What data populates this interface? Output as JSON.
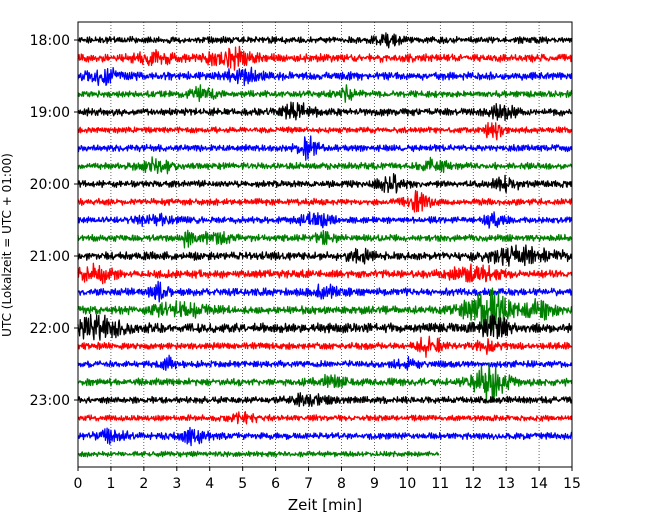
{
  "chart_data": {
    "type": "line",
    "title": "",
    "xlabel": "Zeit  [min]",
    "ylabel": "UTC (Lokalzeit = UTC + 01:00)",
    "xlim": [
      0,
      15
    ],
    "x_ticks": [
      "0",
      "1",
      "2",
      "3",
      "4",
      "5",
      "6",
      "7",
      "8",
      "9",
      "10",
      "11",
      "12",
      "13",
      "14",
      "15"
    ],
    "y_tick_labels": [
      "18:00",
      "19:00",
      "20:00",
      "21:00",
      "22:00",
      "23:00"
    ],
    "grid": "vertical dotted at each minute",
    "trace_interval_minutes": 15,
    "color_cycle": [
      "#000000",
      "#ff0000",
      "#0000ff",
      "#008000"
    ],
    "traces": [
      {
        "start": "18:00",
        "color": "#000000",
        "end_min": 15,
        "amplitude": 0.25,
        "events": [
          {
            "t": 9.4,
            "amp": 0.45,
            "w": 0.3
          }
        ]
      },
      {
        "start": "18:15",
        "color": "#ff0000",
        "end_min": 15,
        "amplitude": 0.3,
        "events": [
          {
            "t": 2.2,
            "amp": 0.55,
            "w": 0.5
          },
          {
            "t": 4.6,
            "amp": 0.75,
            "w": 0.6
          }
        ]
      },
      {
        "start": "18:30",
        "color": "#0000ff",
        "end_min": 15,
        "amplitude": 0.3,
        "events": [
          {
            "t": 0.8,
            "amp": 0.45,
            "w": 0.5
          },
          {
            "t": 5.0,
            "amp": 0.45,
            "w": 0.5
          }
        ]
      },
      {
        "start": "18:45",
        "color": "#008000",
        "end_min": 15,
        "amplitude": 0.25,
        "events": [
          {
            "t": 3.8,
            "amp": 0.5,
            "w": 0.35
          },
          {
            "t": 8.2,
            "amp": 0.4,
            "w": 0.4
          }
        ]
      },
      {
        "start": "19:00",
        "color": "#000000",
        "end_min": 15,
        "amplitude": 0.28,
        "events": [
          {
            "t": 6.6,
            "amp": 0.55,
            "w": 0.5
          },
          {
            "t": 12.9,
            "amp": 0.45,
            "w": 0.35
          }
        ]
      },
      {
        "start": "19:15",
        "color": "#ff0000",
        "end_min": 15,
        "amplitude": 0.22,
        "events": [
          {
            "t": 12.6,
            "amp": 0.6,
            "w": 0.35
          }
        ]
      },
      {
        "start": "19:30",
        "color": "#0000ff",
        "end_min": 15,
        "amplitude": 0.25,
        "events": [
          {
            "t": 7.0,
            "amp": 0.7,
            "w": 0.3
          }
        ]
      },
      {
        "start": "19:45",
        "color": "#008000",
        "end_min": 15,
        "amplitude": 0.25,
        "events": [
          {
            "t": 2.4,
            "amp": 0.5,
            "w": 0.5
          },
          {
            "t": 10.8,
            "amp": 0.45,
            "w": 0.4
          }
        ]
      },
      {
        "start": "20:00",
        "color": "#000000",
        "end_min": 15,
        "amplitude": 0.25,
        "events": [
          {
            "t": 9.5,
            "amp": 0.55,
            "w": 0.4
          },
          {
            "t": 13.0,
            "amp": 0.4,
            "w": 0.4
          }
        ]
      },
      {
        "start": "20:15",
        "color": "#ff0000",
        "end_min": 15,
        "amplitude": 0.25,
        "events": [
          {
            "t": 10.3,
            "amp": 0.65,
            "w": 0.35
          }
        ]
      },
      {
        "start": "20:30",
        "color": "#0000ff",
        "end_min": 15,
        "amplitude": 0.25,
        "events": [
          {
            "t": 2.3,
            "amp": 0.45,
            "w": 0.4
          },
          {
            "t": 7.2,
            "amp": 0.45,
            "w": 0.45
          },
          {
            "t": 12.6,
            "amp": 0.4,
            "w": 0.3
          }
        ]
      },
      {
        "start": "20:45",
        "color": "#008000",
        "end_min": 15,
        "amplitude": 0.25,
        "events": [
          {
            "t": 3.3,
            "amp": 0.6,
            "w": 0.15
          },
          {
            "t": 4.2,
            "amp": 0.4,
            "w": 0.5
          },
          {
            "t": 7.5,
            "amp": 0.45,
            "w": 0.3
          }
        ]
      },
      {
        "start": "21:00",
        "color": "#000000",
        "end_min": 15,
        "amplitude": 0.3,
        "events": [
          {
            "t": 8.5,
            "amp": 0.4,
            "w": 0.4
          },
          {
            "t": 13.5,
            "amp": 0.5,
            "w": 1.2
          }
        ]
      },
      {
        "start": "21:15",
        "color": "#ff0000",
        "end_min": 15,
        "amplitude": 0.3,
        "events": [
          {
            "t": 0.5,
            "amp": 0.55,
            "w": 0.5
          },
          {
            "t": 12.0,
            "amp": 0.5,
            "w": 0.7
          }
        ]
      },
      {
        "start": "21:30",
        "color": "#0000ff",
        "end_min": 15,
        "amplitude": 0.28,
        "events": [
          {
            "t": 2.5,
            "amp": 0.5,
            "w": 0.3
          },
          {
            "t": 7.5,
            "amp": 0.35,
            "w": 0.5
          }
        ]
      },
      {
        "start": "21:45",
        "color": "#008000",
        "end_min": 15,
        "amplitude": 0.3,
        "events": [
          {
            "t": 3.0,
            "amp": 0.45,
            "w": 0.8
          },
          {
            "t": 12.4,
            "amp": 1.6,
            "w": 0.6
          },
          {
            "t": 14.0,
            "amp": 0.55,
            "w": 0.5
          }
        ]
      },
      {
        "start": "22:00",
        "color": "#000000",
        "end_min": 15,
        "amplitude": 0.35,
        "events": [
          {
            "t": 0.5,
            "amp": 0.65,
            "w": 0.8
          },
          {
            "t": 12.6,
            "amp": 0.6,
            "w": 0.5
          }
        ]
      },
      {
        "start": "22:15",
        "color": "#ff0000",
        "end_min": 15,
        "amplitude": 0.25,
        "events": [
          {
            "t": 10.7,
            "amp": 0.6,
            "w": 0.4
          },
          {
            "t": 12.4,
            "amp": 0.35,
            "w": 0.3
          }
        ]
      },
      {
        "start": "22:30",
        "color": "#0000ff",
        "end_min": 15,
        "amplitude": 0.25,
        "events": [
          {
            "t": 2.8,
            "amp": 0.4,
            "w": 0.3
          },
          {
            "t": 10.0,
            "amp": 0.35,
            "w": 0.3
          }
        ]
      },
      {
        "start": "22:45",
        "color": "#008000",
        "end_min": 15,
        "amplitude": 0.28,
        "events": [
          {
            "t": 12.5,
            "amp": 1.3,
            "w": 0.5
          },
          {
            "t": 7.7,
            "amp": 0.35,
            "w": 0.4
          }
        ]
      },
      {
        "start": "23:00",
        "color": "#000000",
        "end_min": 15,
        "amplitude": 0.25,
        "events": [
          {
            "t": 7.0,
            "amp": 0.35,
            "w": 0.6
          }
        ]
      },
      {
        "start": "23:15",
        "color": "#ff0000",
        "end_min": 15,
        "amplitude": 0.22,
        "events": [
          {
            "t": 5.0,
            "amp": 0.3,
            "w": 0.5
          }
        ]
      },
      {
        "start": "23:30",
        "color": "#0000ff",
        "end_min": 15,
        "amplitude": 0.25,
        "events": [
          {
            "t": 3.5,
            "amp": 0.45,
            "w": 0.4
          },
          {
            "t": 1.0,
            "amp": 0.35,
            "w": 0.5
          }
        ]
      },
      {
        "start": "23:45",
        "color": "#008000",
        "end_min": 10.95,
        "amplitude": 0.2,
        "events": []
      }
    ]
  }
}
